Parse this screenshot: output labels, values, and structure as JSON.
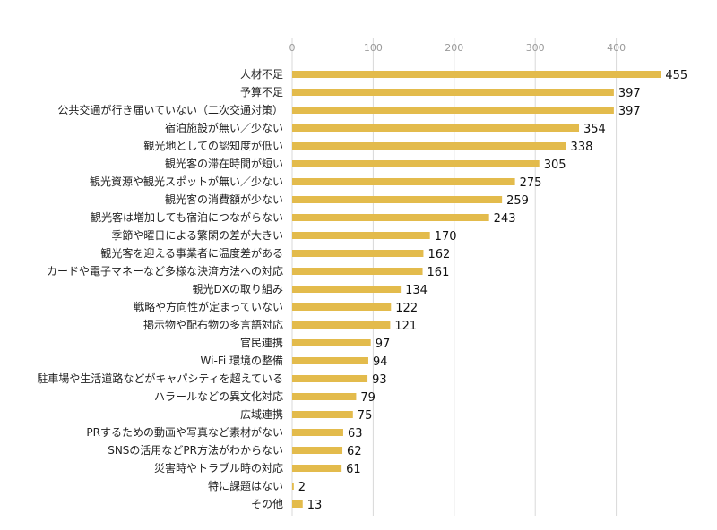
{
  "chart_data": {
    "type": "bar",
    "orientation": "horizontal",
    "categories": [
      "人材不足",
      "予算不足",
      "公共交通が行き届いていない（二次交通対策）",
      "宿泊施設が無い／少ない",
      "観光地としての認知度が低い",
      "観光客の滞在時間が短い",
      "観光資源や観光スポットが無い／少ない",
      "観光客の消費額が少ない",
      "観光客は増加しても宿泊につながらない",
      "季節や曜日による繁閑の差が大きい",
      "観光客を迎える事業者に温度差がある",
      "カードや電子マネーなど多様な決済方法への対応",
      "観光DXの取り組み",
      "戦略や方向性が定まっていない",
      "掲示物や配布物の多言語対応",
      "官民連携",
      "Wi-Fi 環境の整備",
      "駐車場や生活道路などがキャパシティを超えている",
      "ハラールなどの異文化対応",
      "広域連携",
      "PRするための動画や写真など素材がない",
      "SNSの活用などPR方法がわからない",
      "災害時やトラブル時の対応",
      "特に課題はない",
      "その他"
    ],
    "values": [
      455,
      397,
      397,
      354,
      338,
      305,
      275,
      259,
      243,
      170,
      162,
      161,
      134,
      122,
      121,
      97,
      94,
      93,
      79,
      75,
      63,
      62,
      61,
      2,
      13
    ],
    "xlim": [
      0,
      460
    ],
    "ticks": [
      0,
      100,
      200,
      300,
      400
    ],
    "tick_labels": [
      "0",
      "100",
      "200",
      "300",
      "400"
    ],
    "axis_position": "top",
    "grid": true,
    "bar_color": "#E3BB4C",
    "grid_color": "#D9D9D9"
  }
}
